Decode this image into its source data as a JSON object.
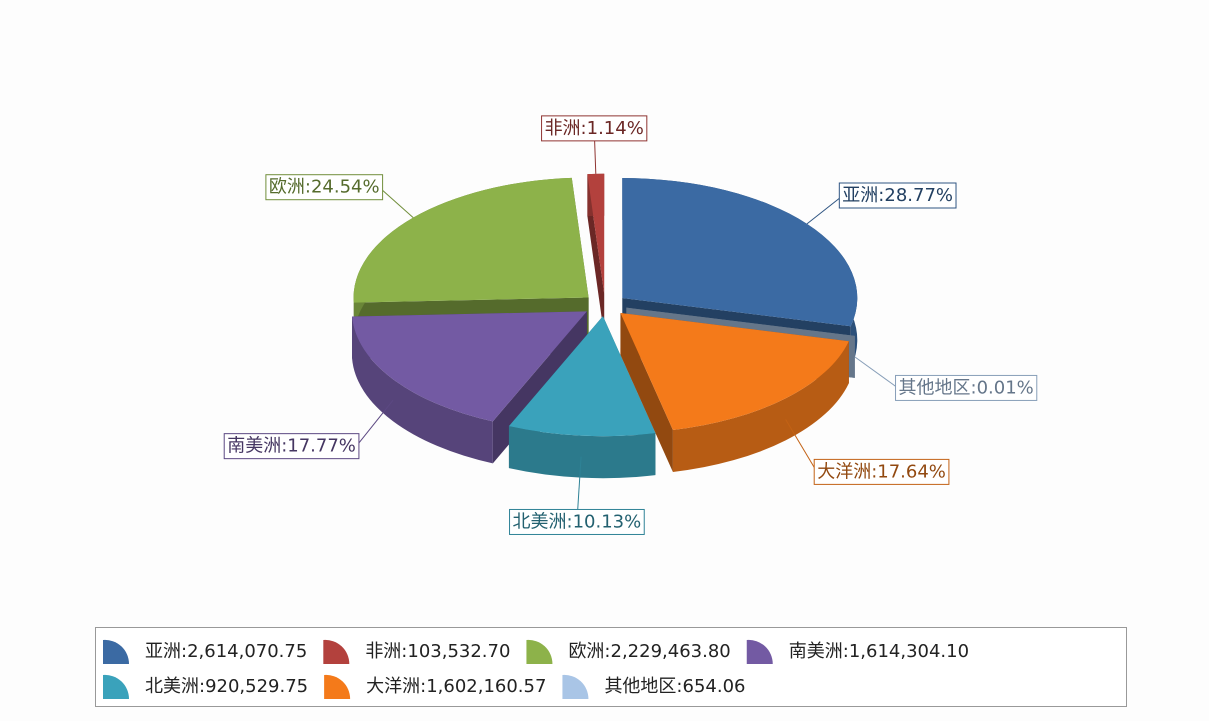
{
  "chart_data": {
    "type": "pie3d",
    "categories": [
      "亚洲",
      "非洲",
      "欧洲",
      "南美洲",
      "北美洲",
      "大洋洲",
      "其他地区"
    ],
    "values": [
      2614070.75,
      103532.7,
      2229463.8,
      1614304.1,
      920529.75,
      1602160.57,
      654.06
    ],
    "colors": [
      "#3b6aa3",
      "#b3413d",
      "#8db24a",
      "#735aa3",
      "#3aa2bb",
      "#f47a1a",
      "#a9c5e6"
    ],
    "data_labels": [
      "亚洲:28.77%",
      "非洲:1.14%",
      "欧洲:24.54%",
      "南美洲:17.77%",
      "北美洲:10.13%",
      "大洋洲:17.64%",
      "其他地区:0.01%"
    ],
    "legend_labels": [
      "亚洲:2,614,070.75",
      "非洲:103,532.70",
      "欧洲:2,229,463.80",
      "南美洲:1,614,304.10",
      "北美洲:920,529.75",
      "大洋洲:1,602,160.57",
      "其他地区:654.06"
    ]
  }
}
